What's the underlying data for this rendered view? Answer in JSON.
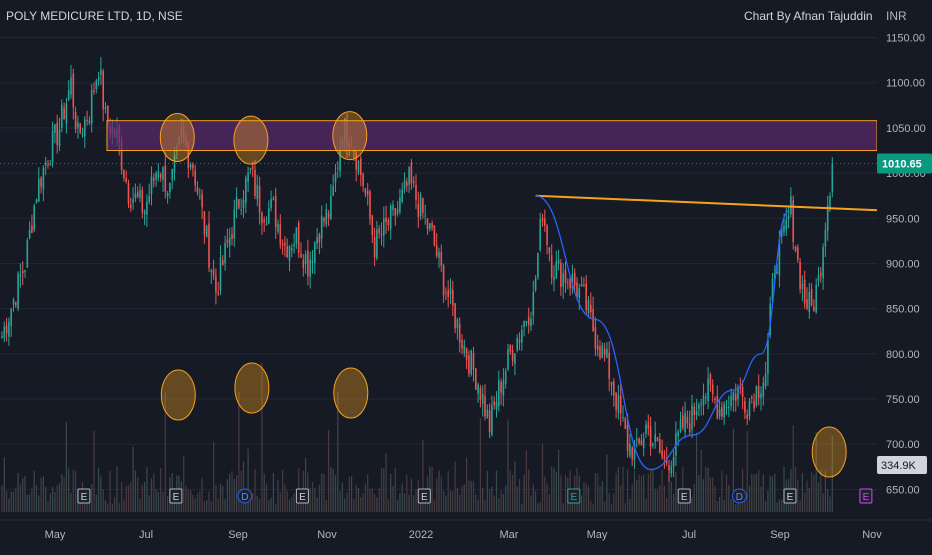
{
  "header": {
    "title": "POLY MEDICURE LTD, 1D, NSE",
    "author": "Chart By Afnan Tajuddin",
    "currency": "INR"
  },
  "colors": {
    "background": "#161a25",
    "bull": "#26a69a",
    "bear": "#ef5350",
    "zone_fill": "#5b2a6e",
    "zone_border": "#f7a21b",
    "trendline": "#f7a21b",
    "cup_curve": "#2962ff",
    "highlight": "#f7a21b",
    "last_price_bg": "#089981",
    "volume": "#5d606b"
  },
  "chart_data": {
    "type": "candlestick",
    "title": "POLY MEDICURE LTD, 1D, NSE",
    "ylabel": "INR",
    "ylim": [
      625,
      1165
    ],
    "y_ticks": [
      "1150.00",
      "1100.00",
      "1050.00",
      "1000.00",
      "950.00",
      "900.00",
      "850.00",
      "800.00",
      "750.00",
      "700.00",
      "650.00"
    ],
    "x_ticks": [
      "May",
      "Jul",
      "Sep",
      "Nov",
      "2022",
      "Mar",
      "May",
      "Jul",
      "Sep",
      "Nov"
    ],
    "last_price": "1010.65",
    "last_volume": "334.9K",
    "price_path": [
      [
        0,
        820
      ],
      [
        5,
        860
      ],
      [
        10,
        900
      ],
      [
        15,
        980
      ],
      [
        20,
        1020
      ],
      [
        25,
        1050
      ],
      [
        30,
        1100
      ],
      [
        33,
        1040
      ],
      [
        38,
        1070
      ],
      [
        42,
        1120
      ],
      [
        45,
        1060
      ],
      [
        50,
        1040
      ],
      [
        55,
        980
      ],
      [
        62,
        960
      ],
      [
        68,
        1010
      ],
      [
        73,
        980
      ],
      [
        78,
        1040
      ],
      [
        83,
        1010
      ],
      [
        88,
        940
      ],
      [
        93,
        870
      ],
      [
        98,
        920
      ],
      [
        103,
        970
      ],
      [
        108,
        1000
      ],
      [
        113,
        960
      ],
      [
        118,
        960
      ],
      [
        123,
        920
      ],
      [
        128,
        930
      ],
      [
        133,
        900
      ],
      [
        138,
        940
      ],
      [
        143,
        960
      ],
      [
        148,
        1050
      ],
      [
        152,
        1040
      ],
      [
        157,
        990
      ],
      [
        162,
        920
      ],
      [
        167,
        940
      ],
      [
        172,
        960
      ],
      [
        177,
        990
      ],
      [
        182,
        960
      ],
      [
        187,
        930
      ],
      [
        192,
        880
      ],
      [
        197,
        840
      ],
      [
        202,
        800
      ],
      [
        207,
        770
      ],
      [
        212,
        720
      ],
      [
        216,
        760
      ],
      [
        221,
        800
      ],
      [
        226,
        830
      ],
      [
        231,
        860
      ],
      [
        235,
        960
      ],
      [
        239,
        900
      ],
      [
        243,
        890
      ],
      [
        248,
        880
      ],
      [
        253,
        860
      ],
      [
        258,
        820
      ],
      [
        263,
        790
      ],
      [
        268,
        740
      ],
      [
        272,
        700
      ],
      [
        276,
        690
      ],
      [
        280,
        720
      ],
      [
        284,
        700
      ],
      [
        288,
        680
      ],
      [
        292,
        690
      ],
      [
        296,
        720
      ],
      [
        300,
        730
      ],
      [
        304,
        760
      ],
      [
        308,
        755
      ],
      [
        312,
        740
      ],
      [
        316,
        750
      ],
      [
        320,
        760
      ],
      [
        324,
        745
      ],
      [
        328,
        760
      ],
      [
        332,
        780
      ],
      [
        336,
        900
      ],
      [
        340,
        930
      ],
      [
        343,
        960
      ],
      [
        346,
        900
      ],
      [
        349,
        860
      ],
      [
        352,
        850
      ],
      [
        355,
        880
      ],
      [
        358,
        950
      ],
      [
        361,
        1010
      ]
    ],
    "resistance_zone": {
      "low": 1025,
      "high": 1058
    },
    "trendline": {
      "start": {
        "x": 232,
        "y": 975
      },
      "end": {
        "x": 361,
        "y": 956
      }
    },
    "cup_points": [
      [
        232,
        975
      ],
      [
        258,
        838
      ],
      [
        282,
        672
      ],
      [
        300,
        710
      ],
      [
        318,
        760
      ],
      [
        330,
        800
      ],
      [
        342,
        958
      ]
    ],
    "highlight_circles": [
      {
        "x": 71,
        "y": 1045
      },
      {
        "x": 103,
        "y": 1042
      },
      {
        "x": 146,
        "y": 1047
      }
    ],
    "volume_circles": [
      {
        "x": 71
      },
      {
        "x": 103
      },
      {
        "x": 146
      },
      {
        "x": 354
      }
    ],
    "event_markers": [
      {
        "x": 33,
        "label": "E",
        "kind": "earnings"
      },
      {
        "x": 73,
        "label": "E",
        "kind": "earnings"
      },
      {
        "x": 103,
        "label": "D",
        "kind": "dividend"
      },
      {
        "x": 128,
        "label": "E",
        "kind": "earnings"
      },
      {
        "x": 181,
        "label": "E",
        "kind": "earnings"
      },
      {
        "x": 246,
        "label": "E",
        "kind": "earnings-active"
      },
      {
        "x": 294,
        "label": "E",
        "kind": "earnings"
      },
      {
        "x": 318,
        "label": "D",
        "kind": "dividend"
      },
      {
        "x": 340,
        "label": "E",
        "kind": "earnings"
      },
      {
        "x": 373,
        "label": "E",
        "kind": "future"
      }
    ]
  }
}
